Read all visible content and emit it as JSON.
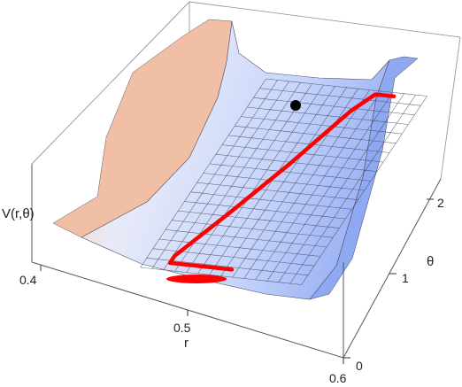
{
  "chart_data": {
    "type": "surface",
    "zlabel": "V(r,θ)",
    "xlabel": "r",
    "ylabel": "θ",
    "x_ticks": [
      "0.4",
      "0.5",
      "0.6"
    ],
    "y_ticks": [
      "0",
      "1",
      "2"
    ],
    "xlim": [
      0.4,
      0.6
    ],
    "ylim": [
      0,
      2.8
    ],
    "surface": "potential valley with steep walls near r=0.44 and r=0.57, shallow basin between",
    "trajectory": {
      "color": "#ff0000",
      "points_r_theta": [
        [
          0.51,
          0.15
        ],
        [
          0.46,
          0.15
        ],
        [
          0.46,
          0.25
        ],
        [
          0.48,
          0.9
        ],
        [
          0.5,
          1.6
        ],
        [
          0.52,
          2.4
        ],
        [
          0.53,
          2.65
        ],
        [
          0.545,
          2.65
        ]
      ]
    },
    "endpoint": {
      "r": 0.55,
      "theta": 2.65,
      "color": "#000000"
    }
  }
}
